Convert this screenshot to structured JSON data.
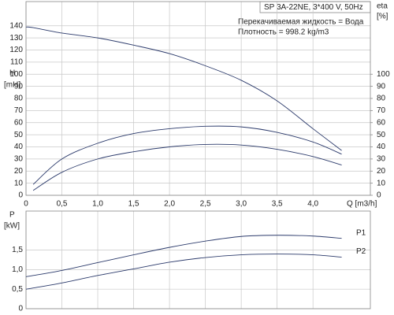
{
  "chart_data": [
    {
      "type": "line",
      "title": "SP 3A-22NE, 3*400 V, 50Hz",
      "annotations": [
        "Перекачиваемая жидкость = Вода",
        "Плотность = 998.2 kg/m3"
      ],
      "x_label": "Q [m3/h]",
      "y_label": "H",
      "y_unit": "[mH]",
      "y2_label": "eta",
      "y2_unit": "[%]",
      "x": [
        0,
        0.1,
        0.5,
        1,
        1.5,
        2,
        2.5,
        3,
        3.5,
        4,
        4.4
      ],
      "xlim": [
        0,
        4.8
      ],
      "xticks": [
        0,
        {
          "value": 0.5,
          "label": "0,5"
        },
        {
          "value": 1,
          "label": "1,0"
        },
        {
          "value": 1.5,
          "label": "1,5"
        },
        {
          "value": 2,
          "label": "2,0"
        },
        {
          "value": 2.5,
          "label": "2,5"
        },
        {
          "value": 3,
          "label": "3,0"
        },
        {
          "value": 3.5,
          "label": "3,5"
        },
        {
          "value": 4,
          "label": "4,0"
        }
      ],
      "ylim": [
        0,
        160
      ],
      "yticks": [
        0,
        10,
        20,
        30,
        40,
        50,
        60,
        70,
        80,
        90,
        100,
        110,
        120,
        130,
        140
      ],
      "y2lim": [
        0,
        160
      ],
      "y2ticks": [
        0,
        10,
        20,
        30,
        40,
        50,
        60,
        70,
        80,
        90,
        100
      ],
      "grid": true,
      "series": [
        {
          "color": "#2b3a6b",
          "values": [
            139,
            138.5,
            134,
            130,
            124,
            117,
            107,
            95,
            78,
            55,
            37
          ]
        },
        {
          "color": "#2b3a6b",
          "axis": "y2",
          "values": [
            null,
            9,
            30,
            43,
            51,
            55,
            57,
            56.5,
            52,
            44,
            34
          ]
        },
        {
          "color": "#2b3a6b",
          "axis": "y2",
          "values": [
            null,
            4,
            19,
            30,
            36,
            40,
            42,
            41.5,
            38,
            32,
            25
          ]
        }
      ]
    },
    {
      "type": "line",
      "y_label": "P",
      "y_unit": "[kW]",
      "x": [
        0,
        0.1,
        0.5,
        1,
        1.5,
        2,
        2.5,
        3,
        3.5,
        4,
        4.4
      ],
      "xlim": [
        0,
        4.8
      ],
      "xticks": [
        0,
        0.5,
        1,
        1.5,
        2,
        2.5,
        3,
        3.5,
        4
      ],
      "ylim": [
        0,
        2.5
      ],
      "yticks": [
        0,
        {
          "value": 0.5,
          "label": "0,5"
        },
        {
          "value": 1,
          "label": "1,0"
        },
        {
          "value": 1.5,
          "label": "1,5"
        }
      ],
      "grid": true,
      "series": [
        {
          "name": "P1",
          "color": "#2b3a6b",
          "values": [
            0.82,
            0.85,
            0.98,
            1.18,
            1.38,
            1.57,
            1.73,
            1.85,
            1.88,
            1.86,
            1.8
          ]
        },
        {
          "name": "P2",
          "color": "#2b3a6b",
          "values": [
            0.5,
            0.53,
            0.66,
            0.85,
            1.02,
            1.19,
            1.31,
            1.38,
            1.4,
            1.38,
            1.32
          ]
        }
      ]
    }
  ]
}
